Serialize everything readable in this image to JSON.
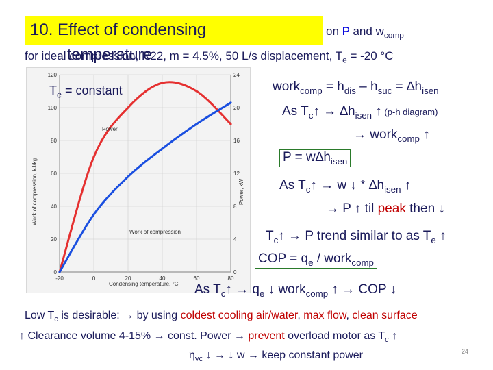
{
  "title": {
    "main": "10. Effect of condensing",
    "wrap": "temperature",
    "tail_pre": "on",
    "tail_p": "P",
    "tail_and": "and w",
    "tail_sub": "comp"
  },
  "subtitle": "for ideal compression, R22, m = 4.5%, 50 L/s displacement, T",
  "subtitle_sub": "e",
  "subtitle_tail": " = -20 °C",
  "chart": {
    "te_label": "T",
    "te_sub": "e",
    "te_tail": " = constant",
    "left_axis_label": "Work of compression, kJ/kg",
    "right_axis_label": "Power, kW",
    "x_axis_label": "Condensing temperature, °C",
    "power_label": "Power",
    "work_label": "Work of compression",
    "left_ticks": [
      "0",
      "20",
      "40",
      "60",
      "80",
      "100",
      "120"
    ],
    "right_ticks": [
      "0",
      "4",
      "8",
      "12",
      "16",
      "20",
      "24"
    ],
    "x_ticks": [
      "-20",
      "0",
      "20",
      "40",
      "60",
      "80"
    ]
  },
  "chart_data": {
    "type": "line",
    "xlabel": "Condensing temperature, °C",
    "ylabel": "Work of compression, kJ/kg",
    "y2label": "Power, kW",
    "x": [
      -20,
      0,
      20,
      40,
      60,
      80
    ],
    "xlim": [
      -20,
      80
    ],
    "ylim": [
      0,
      120
    ],
    "y2lim": [
      0,
      24
    ],
    "series": [
      {
        "name": "Power",
        "axis": "right",
        "values": [
          0,
          14,
          20,
          23,
          22,
          18
        ]
      },
      {
        "name": "Work of compression",
        "axis": "left",
        "values": [
          0,
          35,
          58,
          75,
          90,
          103
        ]
      }
    ]
  },
  "notes": {
    "l1_a": "work",
    "l1_b": "comp",
    "l1_c": " = h",
    "l1_d": "dis",
    "l1_e": " – h",
    "l1_f": "suc",
    "l1_g": " = ∆h",
    "l1_h": "isen",
    "l2_a": "As T",
    "l2_b": "c",
    "l2_c": "↑  → ∆h",
    "l2_d": "isen",
    "l2_e": " ↑",
    "l2_f": " (p-h diagram)",
    "l3_a": "→ work",
    "l3_b": "comp",
    "l3_c": " ↑",
    "l4_a": "P = w∆h",
    "l4_b": "isen",
    "l5_a": "As T",
    "l5_b": "c",
    "l5_c": "↑  → w ↓ * ∆h",
    "l5_d": "isen",
    "l5_e": " ↑",
    "l6_a": "→ P ↑  til ",
    "l6_b": "peak",
    "l6_c": " then ↓",
    "l7_a": "T",
    "l7_b": "c",
    "l7_c": "↑ → P trend similar to as T",
    "l7_d": "e",
    "l7_e": " ↑",
    "l8_a": "COP = q",
    "l8_b": "e",
    "l8_c": " / work",
    "l8_d": "comp",
    "l9_a": "As T",
    "l9_b": "c",
    "l9_c": "↑  → q",
    "l9_d": "e",
    "l9_e": " ↓ work",
    "l9_f": "comp",
    "l9_g": " ↑   → COP ↓",
    "l10_a": "Low T",
    "l10_b": "c",
    "l10_c": " is desirable: → by using ",
    "l10_d": "coldest cooling air/water",
    "l10_e": ", ",
    "l10_f": "max flow",
    "l10_g": ", ",
    "l10_h": "clean surface",
    "l11_a": "↑ Clearance volume  4-15% → const. Power → ",
    "l11_b": "prevent",
    "l11_c": " overload motor as T",
    "l11_d": "c",
    "l11_e": " ↑",
    "l12_a": "η",
    "l12_b": "vc",
    "l12_c": " ↓ → ↓ w → keep constant power"
  },
  "page_number": "24",
  "colors": {
    "title_highlight": "#ffff00",
    "emphasis_red": "#c00000",
    "emphasis_blue": "#0000dd",
    "text": "#1a1a5a"
  }
}
